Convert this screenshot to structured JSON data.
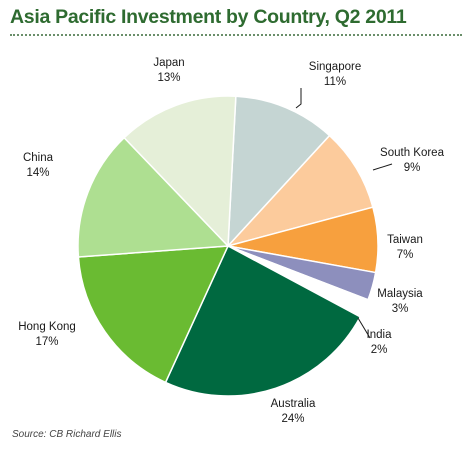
{
  "header": {
    "title": "Asia Pacific Investment by Country, Q2 2011"
  },
  "footer": {
    "source": "Source: CB Richard Ellis"
  },
  "chart_data": {
    "type": "pie",
    "title": "Asia Pacific Investment by Country, Q2 2011",
    "slices": [
      {
        "label": "Singapore",
        "value": 11,
        "display": "11%",
        "color": "#c5d5d3"
      },
      {
        "label": "South Korea",
        "value": 9,
        "display": "9%",
        "color": "#fccb9c"
      },
      {
        "label": "Taiwan",
        "value": 7,
        "display": "7%",
        "color": "#f7a03e"
      },
      {
        "label": "Malaysia",
        "value": 3,
        "display": "3%",
        "color": "#8d8fbd"
      },
      {
        "label": "India",
        "value": 2,
        "display": "2%",
        "color": "#ffffff"
      },
      {
        "label": "Australia",
        "value": 24,
        "display": "24%",
        "color": "#006940"
      },
      {
        "label": "Hong Kong",
        "value": 17,
        "display": "17%",
        "color": "#6abb32"
      },
      {
        "label": "China",
        "value": 14,
        "display": "14%",
        "color": "#aedf91"
      },
      {
        "label": "Japan",
        "value": 13,
        "display": "13%",
        "color": "#e5efd8"
      }
    ]
  }
}
